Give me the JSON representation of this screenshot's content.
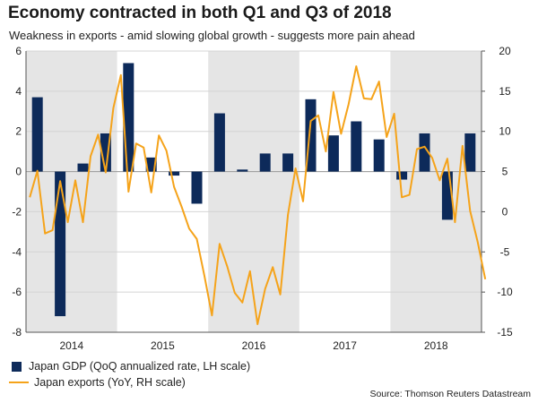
{
  "header": {
    "title": "Economy contracted in both Q1 and Q3 of 2018",
    "subtitle": "Weakness in exports - amid slowing global growth - suggests more pain ahead"
  },
  "legend": {
    "gdp_label": "Japan GDP (QoQ annualized rate, LH scale)",
    "exports_label": "Japan exports (YoY, RH scale)"
  },
  "source": "Source: Thomson Reuters Datastream",
  "colors": {
    "gdp": "#0d2a5a",
    "exports": "#f5a31a",
    "shade": "#e5e5e5"
  },
  "chart_data": {
    "type": "bar",
    "x_categories": [
      "2014",
      "2015",
      "2016",
      "2017",
      "2018"
    ],
    "ylim_left": [
      -8,
      6
    ],
    "ylim_right": [
      -15,
      20
    ],
    "left_ticks": [
      6,
      4,
      2,
      0,
      -2,
      -4,
      -6,
      -8
    ],
    "right_ticks": [
      20,
      15,
      10,
      5,
      0,
      -5,
      -10,
      -15
    ],
    "shaded_years": [
      "2014",
      "2016",
      "2018"
    ],
    "gridlines": true,
    "legend_position": "bottom-left",
    "series": [
      {
        "name": "Japan GDP (QoQ annualized rate, LH scale)",
        "type": "bar",
        "axis": "left",
        "x": [
          "2014 Q1",
          "2014 Q2",
          "2014 Q3",
          "2014 Q4",
          "2015 Q1",
          "2015 Q2",
          "2015 Q3",
          "2015 Q4",
          "2016 Q1",
          "2016 Q2",
          "2016 Q3",
          "2016 Q4",
          "2017 Q1",
          "2017 Q2",
          "2017 Q3",
          "2017 Q4",
          "2018 Q1",
          "2018 Q2",
          "2018 Q3",
          "2018 Q4"
        ],
        "values": [
          3.7,
          -7.2,
          0.4,
          1.9,
          5.4,
          0.7,
          -0.2,
          -1.6,
          2.9,
          0.1,
          0.9,
          0.9,
          3.6,
          1.8,
          2.5,
          1.6,
          -0.4,
          1.9,
          -2.4,
          1.9
        ]
      },
      {
        "name": "Japan exports (YoY, RH scale)",
        "type": "line",
        "axis": "right",
        "x_start": "2014-01",
        "frequency": "monthly",
        "values": [
          1.8,
          5.1,
          -2.7,
          -2.3,
          3.8,
          -1.3,
          3.9,
          -1.3,
          6.9,
          9.6,
          4.9,
          12.9,
          17.0,
          2.5,
          8.5,
          8.0,
          2.4,
          9.5,
          7.6,
          3.1,
          0.6,
          -2.1,
          -3.4,
          -8.0,
          -12.9,
          -4.0,
          -6.8,
          -10.1,
          -11.3,
          -7.4,
          -14.0,
          -9.6,
          -6.9,
          -10.3,
          -0.4,
          5.4,
          1.3,
          11.3,
          12.0,
          7.5,
          14.9,
          9.7,
          13.4,
          18.1,
          14.1,
          14.0,
          16.2,
          9.3,
          12.2,
          1.8,
          2.1,
          7.8,
          8.1,
          6.7,
          3.9,
          6.6,
          -1.3,
          8.2,
          0.1,
          -3.8,
          -8.4
        ]
      }
    ]
  }
}
